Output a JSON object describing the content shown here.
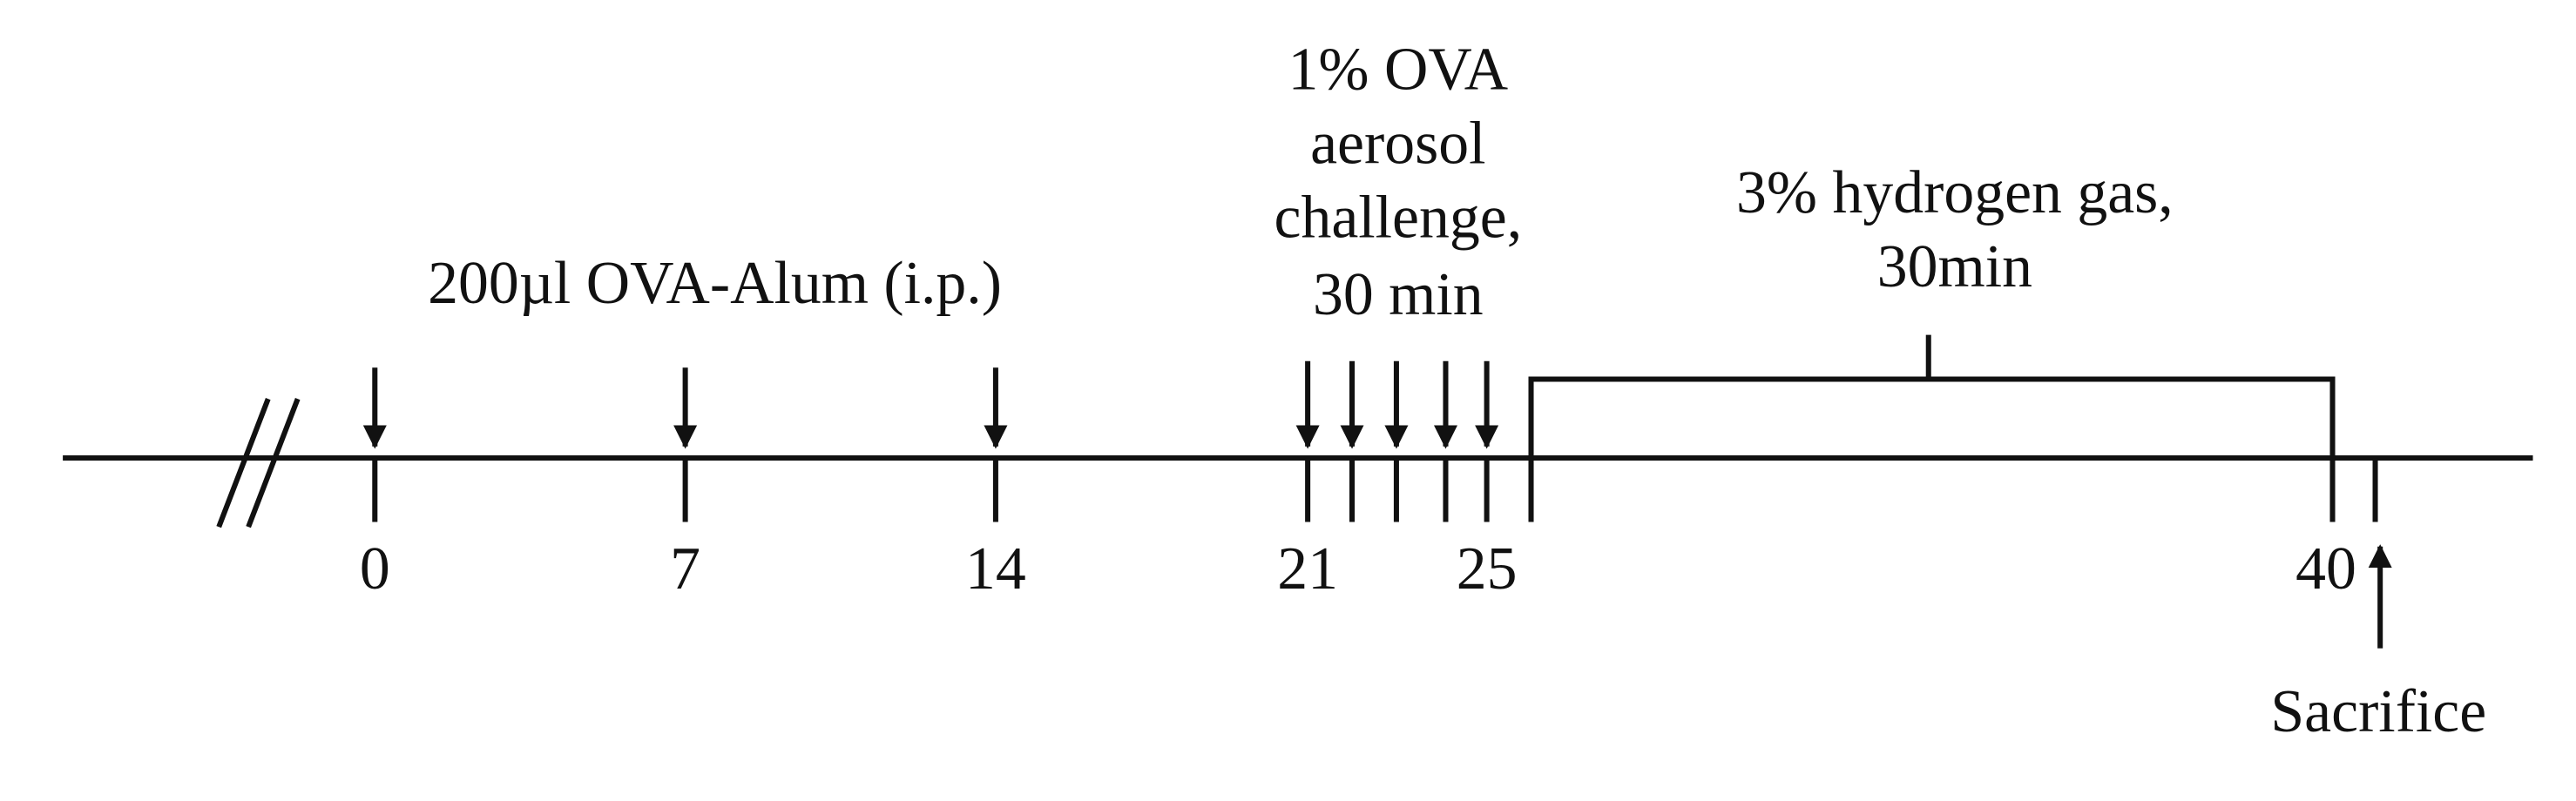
{
  "injection": {
    "label": "200µl OVA-Alum (i.p.)"
  },
  "challenge": {
    "lines": [
      "1% OVA",
      "aerosol",
      "challenge,",
      "30 min"
    ]
  },
  "treatment": {
    "lines": [
      "3% hydrogen gas,",
      "30min"
    ]
  },
  "day_labels": [
    "0",
    "7",
    "14",
    "21",
    "25",
    "40"
  ],
  "endpoint": {
    "label": "Sacrifice"
  }
}
